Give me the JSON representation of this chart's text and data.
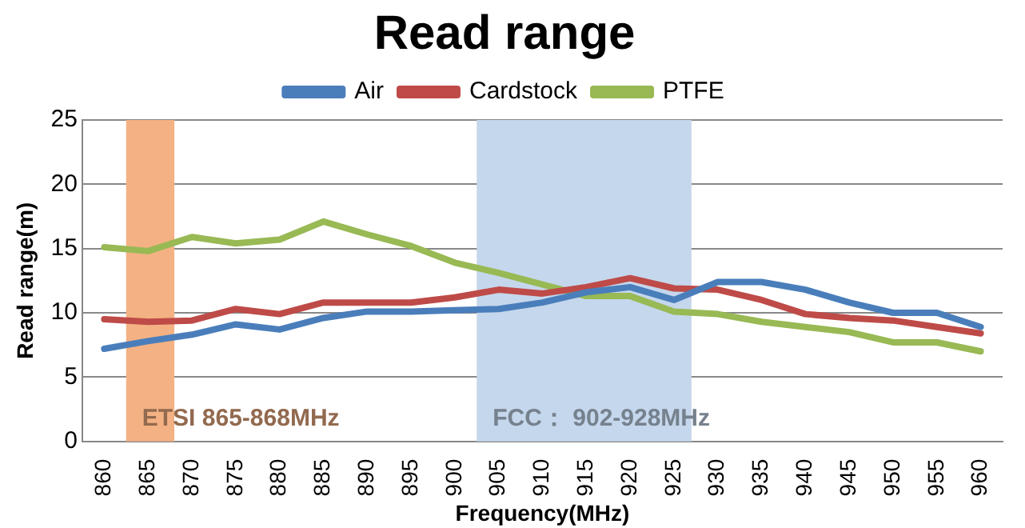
{
  "chart_data": {
    "type": "line",
    "title": "Read range",
    "xlabel": "Frequency(MHz)",
    "ylabel": "Read range(m)",
    "x": [
      860,
      865,
      870,
      875,
      880,
      885,
      890,
      895,
      900,
      905,
      910,
      915,
      920,
      925,
      930,
      935,
      940,
      945,
      950,
      955,
      960
    ],
    "xlim": [
      857.5,
      962.5
    ],
    "xticks": [
      860,
      865,
      870,
      875,
      880,
      885,
      890,
      895,
      900,
      905,
      910,
      915,
      920,
      925,
      930,
      935,
      940,
      945,
      950,
      955,
      960
    ],
    "ylim": [
      0,
      25
    ],
    "yticks": [
      0,
      5,
      10,
      15,
      20,
      25
    ],
    "series": [
      {
        "name": "Air",
        "color": "#4a7ebb",
        "values": [
          7.2,
          7.8,
          8.3,
          9.1,
          8.7,
          9.6,
          10.1,
          10.1,
          10.2,
          10.3,
          10.8,
          11.6,
          12.0,
          11.0,
          12.4,
          12.4,
          11.8,
          10.8,
          10.0,
          10.0,
          8.9
        ]
      },
      {
        "name": "Cardstock",
        "color": "#be4b48",
        "values": [
          9.5,
          9.3,
          9.4,
          10.3,
          9.9,
          10.8,
          10.8,
          10.8,
          11.2,
          11.8,
          11.5,
          12.0,
          12.7,
          11.9,
          11.8,
          11.0,
          9.9,
          9.6,
          9.4,
          8.9,
          8.4
        ]
      },
      {
        "name": "PTFE",
        "color": "#98b954",
        "values": [
          15.1,
          14.8,
          15.9,
          15.4,
          15.7,
          17.1,
          16.1,
          15.2,
          13.9,
          13.1,
          12.2,
          11.3,
          11.3,
          10.1,
          9.9,
          9.3,
          8.9,
          8.5,
          7.7,
          7.7,
          7.0
        ]
      }
    ],
    "bands": [
      {
        "axis": "x",
        "from": 862.5,
        "to": 868,
        "label": "ETSI 865-868MHz",
        "color": "#f4b183"
      },
      {
        "axis": "x",
        "from": 902.5,
        "to": 927,
        "label": "FCC： 902-928MHz",
        "color": "#c5d7ec"
      }
    ],
    "grid": "y",
    "legend": "top",
    "marker": "none",
    "line_style": "solid"
  }
}
